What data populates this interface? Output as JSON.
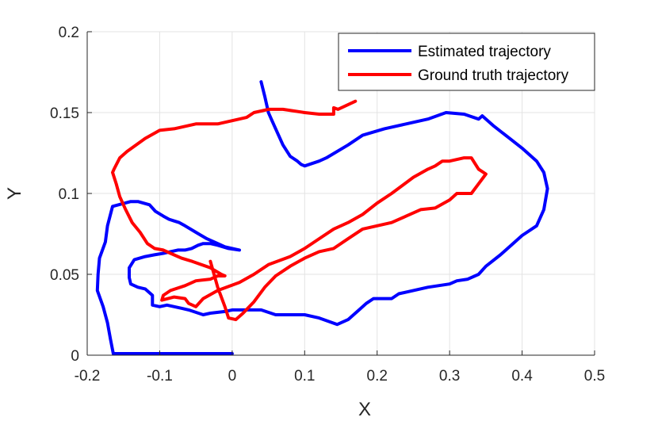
{
  "chart_data": {
    "type": "line",
    "title": "",
    "xlabel": "X",
    "ylabel": "Y",
    "xlim": [
      -0.2,
      0.5
    ],
    "ylim": [
      0,
      0.2
    ],
    "xticks": [
      -0.2,
      -0.1,
      0,
      0.1,
      0.2,
      0.3,
      0.4,
      0.5
    ],
    "xtick_labels": [
      "-0.2",
      "-0.1",
      "0",
      "0.1",
      "0.2",
      "0.3",
      "0.4",
      "0.5"
    ],
    "yticks": [
      0,
      0.05,
      0.1,
      0.15,
      0.2
    ],
    "ytick_labels": [
      "0",
      "0.05",
      "0.1",
      "0.15",
      "0.2"
    ],
    "grid": true,
    "legend_position": "top-right",
    "series": [
      {
        "name": "Estimated trajectory",
        "color": "#0000ff",
        "x": [
          0.0,
          -0.164,
          -0.168,
          -0.172,
          -0.178,
          -0.186,
          -0.185,
          -0.183,
          -0.175,
          -0.172,
          -0.165,
          -0.14,
          -0.13,
          -0.114,
          -0.106,
          -0.095,
          -0.087,
          -0.08,
          -0.073,
          -0.065,
          -0.05,
          -0.035,
          -0.02,
          -0.01,
          0.01,
          -0.005,
          -0.02,
          -0.03,
          -0.04,
          -0.047,
          -0.056,
          -0.065,
          -0.075,
          -0.085,
          -0.095,
          -0.108,
          -0.12,
          -0.135,
          -0.142,
          -0.142,
          -0.14,
          -0.13,
          -0.12,
          -0.11,
          -0.11,
          -0.1,
          -0.09,
          -0.07,
          -0.06,
          -0.04,
          -0.03,
          -0.01,
          0.0,
          0.04,
          0.06,
          0.1,
          0.12,
          0.145,
          0.16,
          0.175,
          0.185,
          0.195,
          0.2,
          0.22,
          0.23,
          0.25,
          0.27,
          0.3,
          0.31,
          0.325,
          0.34,
          0.35,
          0.37,
          0.385,
          0.4,
          0.42,
          0.43,
          0.435,
          0.43,
          0.42,
          0.4,
          0.38,
          0.36,
          0.345,
          0.34,
          0.32,
          0.295,
          0.27,
          0.24,
          0.21,
          0.18,
          0.16,
          0.13,
          0.12,
          0.1,
          0.095,
          0.09,
          0.08,
          0.07,
          0.06,
          0.055,
          0.05,
          0.045,
          0.04
        ],
        "y": [
          0.001,
          0.001,
          0.01,
          0.02,
          0.03,
          0.04,
          0.05,
          0.06,
          0.07,
          0.08,
          0.092,
          0.095,
          0.095,
          0.093,
          0.089,
          0.086,
          0.084,
          0.083,
          0.082,
          0.08,
          0.076,
          0.072,
          0.069,
          0.067,
          0.065,
          0.066,
          0.068,
          0.069,
          0.069,
          0.068,
          0.066,
          0.065,
          0.065,
          0.064,
          0.063,
          0.062,
          0.061,
          0.059,
          0.054,
          0.048,
          0.044,
          0.042,
          0.041,
          0.037,
          0.031,
          0.03,
          0.031,
          0.029,
          0.028,
          0.025,
          0.026,
          0.027,
          0.028,
          0.028,
          0.025,
          0.025,
          0.023,
          0.019,
          0.022,
          0.028,
          0.032,
          0.035,
          0.035,
          0.035,
          0.038,
          0.04,
          0.042,
          0.044,
          0.046,
          0.047,
          0.05,
          0.055,
          0.062,
          0.068,
          0.074,
          0.08,
          0.09,
          0.103,
          0.113,
          0.12,
          0.128,
          0.135,
          0.142,
          0.148,
          0.146,
          0.149,
          0.15,
          0.146,
          0.143,
          0.14,
          0.136,
          0.13,
          0.122,
          0.12,
          0.117,
          0.118,
          0.12,
          0.123,
          0.13,
          0.14,
          0.145,
          0.15,
          0.16,
          0.169
        ]
      },
      {
        "name": "Ground truth trajectory",
        "color": "#ff0000",
        "x": [
          0.17,
          0.146,
          0.14,
          0.14,
          0.12,
          0.1,
          0.07,
          0.05,
          0.04,
          0.03,
          0.02,
          0.0,
          -0.02,
          -0.05,
          -0.08,
          -0.1,
          -0.12,
          -0.145,
          -0.155,
          -0.163,
          -0.165,
          -0.16,
          -0.155,
          -0.147,
          -0.138,
          -0.127,
          -0.117,
          -0.107,
          -0.095,
          -0.085,
          -0.07,
          -0.055,
          -0.03,
          -0.015,
          -0.01,
          -0.02,
          -0.03,
          -0.05,
          -0.065,
          -0.085,
          -0.095,
          -0.097,
          -0.08,
          -0.065,
          -0.06,
          -0.05,
          -0.04,
          -0.02,
          0.01,
          0.03,
          0.05,
          0.08,
          0.1,
          0.12,
          0.14,
          0.16,
          0.18,
          0.2,
          0.22,
          0.25,
          0.27,
          0.28,
          0.29,
          0.3,
          0.32,
          0.33,
          0.34,
          0.35,
          0.34,
          0.33,
          0.31,
          0.3,
          0.28,
          0.26,
          0.24,
          0.22,
          0.2,
          0.18,
          0.16,
          0.14,
          0.12,
          0.1,
          0.08,
          0.06,
          0.045,
          0.03,
          0.015,
          0.005,
          -0.005,
          -0.01,
          -0.02,
          -0.03
        ],
        "y": [
          0.157,
          0.152,
          0.153,
          0.149,
          0.149,
          0.15,
          0.152,
          0.152,
          0.151,
          0.15,
          0.147,
          0.145,
          0.143,
          0.143,
          0.14,
          0.139,
          0.134,
          0.126,
          0.122,
          0.115,
          0.113,
          0.106,
          0.098,
          0.09,
          0.082,
          0.076,
          0.069,
          0.066,
          0.065,
          0.063,
          0.06,
          0.058,
          0.054,
          0.05,
          0.049,
          0.049,
          0.047,
          0.046,
          0.043,
          0.04,
          0.037,
          0.034,
          0.036,
          0.035,
          0.032,
          0.03,
          0.035,
          0.04,
          0.045,
          0.05,
          0.056,
          0.061,
          0.066,
          0.072,
          0.078,
          0.082,
          0.087,
          0.094,
          0.1,
          0.11,
          0.115,
          0.117,
          0.12,
          0.12,
          0.122,
          0.122,
          0.115,
          0.112,
          0.106,
          0.1,
          0.1,
          0.096,
          0.091,
          0.09,
          0.086,
          0.082,
          0.08,
          0.078,
          0.072,
          0.066,
          0.064,
          0.06,
          0.055,
          0.049,
          0.042,
          0.033,
          0.026,
          0.022,
          0.023,
          0.03,
          0.042,
          0.058
        ]
      }
    ]
  }
}
